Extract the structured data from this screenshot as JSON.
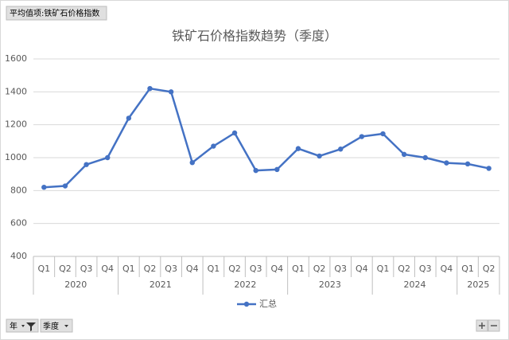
{
  "value_field_button": "平均值项:铁矿石价格指数",
  "axis_field_buttons": [
    "年",
    "季度"
  ],
  "chart_data": {
    "type": "line",
    "title": "铁矿石价格指数趋势（季度）",
    "categories": [
      "Q1",
      "Q2",
      "Q3",
      "Q4",
      "Q1",
      "Q2",
      "Q3",
      "Q4",
      "Q1",
      "Q2",
      "Q3",
      "Q4",
      "Q1",
      "Q2",
      "Q3",
      "Q4",
      "Q1",
      "Q2",
      "Q3",
      "Q4",
      "Q1",
      "Q2"
    ],
    "year_groups": [
      {
        "label": "2020",
        "count": 4
      },
      {
        "label": "2021",
        "count": 4
      },
      {
        "label": "2022",
        "count": 4
      },
      {
        "label": "2023",
        "count": 4
      },
      {
        "label": "2024",
        "count": 4
      },
      {
        "label": "2025",
        "count": 2
      }
    ],
    "series": [
      {
        "name": "汇总",
        "color": "#4472c4",
        "values": [
          820,
          828,
          958,
          1000,
          1240,
          1420,
          1400,
          970,
          1070,
          1150,
          922,
          928,
          1055,
          1010,
          1052,
          1128,
          1145,
          1020,
          1000,
          968,
          962,
          935
        ]
      }
    ],
    "ylim": [
      400,
      1600
    ],
    "yticks": [
      400,
      600,
      800,
      1000,
      1200,
      1400,
      1600
    ],
    "grid": true,
    "legend": "bottom"
  }
}
